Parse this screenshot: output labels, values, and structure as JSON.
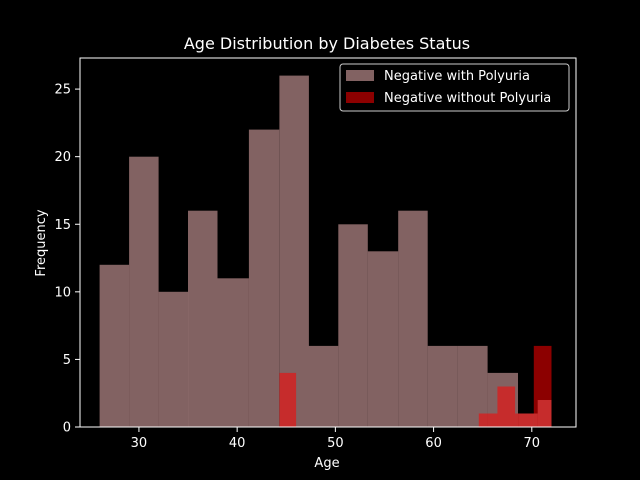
{
  "chart_data": {
    "type": "histogram",
    "title": "Age Distribution by Diabetes Status",
    "xlabel": "Age",
    "ylabel": "Frequency",
    "xlim": [
      24,
      74.5
    ],
    "ylim": [
      0,
      27.3
    ],
    "xticks": [
      30,
      40,
      50,
      60,
      70
    ],
    "yticks": [
      0,
      5,
      10,
      15,
      20,
      25
    ],
    "grid": false,
    "legend_position": "top-right",
    "background": "#000000",
    "series": [
      {
        "name": "Negative with Polyuria",
        "color": "#d9a3a3",
        "opacity": 0.6,
        "bins": [
          {
            "x0": 26.0,
            "x1": 29.0,
            "count": 12
          },
          {
            "x0": 29.0,
            "x1": 32.0,
            "count": 20
          },
          {
            "x0": 32.0,
            "x1": 35.0,
            "count": 10
          },
          {
            "x0": 35.0,
            "x1": 38.0,
            "count": 16
          },
          {
            "x0": 38.0,
            "x1": 41.2,
            "count": 11
          },
          {
            "x0": 41.2,
            "x1": 44.3,
            "count": 22
          },
          {
            "x0": 44.3,
            "x1": 47.3,
            "count": 26
          },
          {
            "x0": 47.3,
            "x1": 50.3,
            "count": 6
          },
          {
            "x0": 50.3,
            "x1": 53.3,
            "count": 15
          },
          {
            "x0": 53.3,
            "x1": 56.4,
            "count": 13
          },
          {
            "x0": 56.4,
            "x1": 59.4,
            "count": 16
          },
          {
            "x0": 59.4,
            "x1": 62.4,
            "count": 6
          },
          {
            "x0": 62.4,
            "x1": 65.5,
            "count": 6
          },
          {
            "x0": 65.5,
            "x1": 68.6,
            "count": 4
          },
          {
            "x0": 68.6,
            "x1": 70.6,
            "count": 1
          },
          {
            "x0": 70.6,
            "x1": 72.0,
            "count": 2
          }
        ]
      },
      {
        "name": "Negative without Polyuria",
        "color": "#ff0000",
        "opacity": 0.55,
        "bins": [
          {
            "x0": 44.3,
            "x1": 46.0,
            "count": 4
          },
          {
            "x0": 64.6,
            "x1": 66.5,
            "count": 1
          },
          {
            "x0": 66.5,
            "x1": 68.3,
            "count": 3
          },
          {
            "x0": 68.3,
            "x1": 70.2,
            "count": 1
          },
          {
            "x0": 70.2,
            "x1": 72.0,
            "count": 6
          }
        ]
      }
    ]
  }
}
